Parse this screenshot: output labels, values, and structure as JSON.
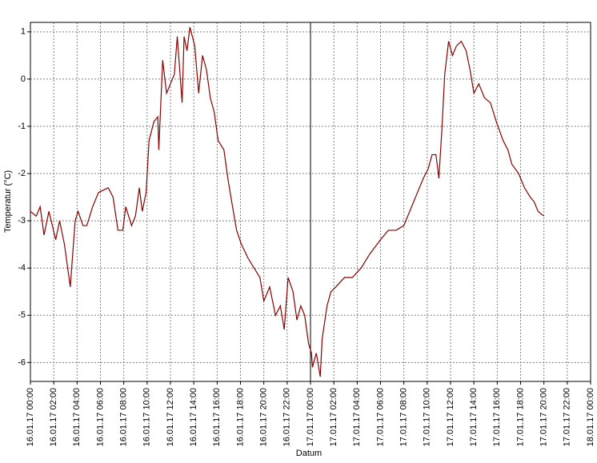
{
  "chart_data": {
    "type": "line",
    "x_label": "Datum",
    "y_label": "Temperatur (°C)",
    "xlim": [
      "16.01.17 00:00",
      "18.01.17 00:00"
    ],
    "xticks": [
      "16.01.17 00:00",
      "16.01.17 02:00",
      "16.01.17 04:00",
      "16.01.17 06:00",
      "16.01.17 08:00",
      "16.01.17 10:00",
      "16.01.17 12:00",
      "16.01.17 14:00",
      "16.01.17 16:00",
      "16.01.17 18:00",
      "16.01.17 20:00",
      "16.01.17 22:00",
      "17.01.17 00:00",
      "17.01.17 02:00",
      "17.01.17 04:00",
      "17.01.17 06:00",
      "17.01.17 08:00",
      "17.01.17 10:00",
      "17.01.17 12:00",
      "17.01.17 14:00",
      "17.01.17 16:00",
      "17.01.17 18:00",
      "17.01.17 20:00",
      "17.01.17 22:00",
      "18.01.17 00:00"
    ],
    "ylim": [
      -6.4,
      1.2
    ],
    "yticks": [
      1,
      0,
      -1,
      -2,
      -3,
      -4,
      -5,
      -6
    ],
    "grid": true,
    "marker_x": "17.01.17 00:00",
    "x": [
      "16.01.17 00:00",
      "16.01.17 00:30",
      "16.01.17 00:50",
      "16.01.17 01:10",
      "16.01.17 01:35",
      "16.01.17 02:10",
      "16.01.17 02:30",
      "16.01.17 02:55",
      "16.01.17 03:25",
      "16.01.17 03:50",
      "16.01.17 04:05",
      "16.01.17 04:30",
      "16.01.17 04:50",
      "16.01.17 05:20",
      "16.01.17 05:50",
      "16.01.17 06:40",
      "16.01.17 07:05",
      "16.01.17 07:30",
      "16.01.17 07:55",
      "16.01.17 08:10",
      "16.01.17 08:40",
      "16.01.17 09:00",
      "16.01.17 09:20",
      "16.01.17 09:35",
      "16.01.17 09:55",
      "16.01.17 10:10",
      "16.01.17 10:35",
      "16.01.17 10:55",
      "16.01.17 11:00",
      "16.01.17 11:20",
      "16.01.17 11:40",
      "16.01.17 12:00",
      "16.01.17 12:20",
      "16.01.17 12:35",
      "16.01.17 13:00",
      "16.01.17 13:10",
      "16.01.17 13:25",
      "16.01.17 13:40",
      "16.01.17 14:05",
      "16.01.17 14:25",
      "16.01.17 14:45",
      "16.01.17 15:05",
      "16.01.17 15:25",
      "16.01.17 15:45",
      "16.01.17 16:05",
      "16.01.17 16:35",
      "16.01.17 16:55",
      "16.01.17 17:15",
      "16.01.17 17:40",
      "16.01.17 18:05",
      "16.01.17 18:40",
      "16.01.17 19:10",
      "16.01.17 19:40",
      "16.01.17 20:00",
      "16.01.17 20:30",
      "16.01.17 21:00",
      "16.01.17 21:25",
      "16.01.17 21:45",
      "16.01.17 22:05",
      "16.01.17 22:30",
      "16.01.17 22:50",
      "16.01.17 23:10",
      "16.01.17 23:30",
      "16.01.17 23:50",
      "17.01.17 00:05",
      "17.01.17 00:10",
      "17.01.17 00:30",
      "17.01.17 00:50",
      "17.01.17 01:00",
      "17.01.17 01:25",
      "17.01.17 01:45",
      "17.01.17 02:10",
      "17.01.17 02:55",
      "17.01.17 03:35",
      "17.01.17 04:20",
      "17.01.17 05:05",
      "17.01.17 06:00",
      "17.01.17 06:40",
      "17.01.17 07:20",
      "17.01.17 08:00",
      "17.01.17 08:40",
      "17.01.17 09:10",
      "17.01.17 09:40",
      "17.01.17 10:05",
      "17.01.17 10:25",
      "17.01.17 10:45",
      "17.01.17 11:00",
      "17.01.17 11:15",
      "17.01.17 11:30",
      "17.01.17 11:50",
      "17.01.17 12:10",
      "17.01.17 12:30",
      "17.01.17 12:55",
      "17.01.17 13:20",
      "17.01.17 13:40",
      "17.01.17 14:00",
      "17.01.17 14:25",
      "17.01.17 14:55",
      "17.01.17 15:25",
      "17.01.17 15:55",
      "17.01.17 16:30",
      "17.01.17 16:55",
      "17.01.17 17:15",
      "17.01.17 17:50",
      "17.01.17 18:20",
      "17.01.17 18:50",
      "17.01.17 19:10",
      "17.01.17 19:30",
      "17.01.17 20:00"
    ],
    "series": [
      {
        "color": "#8b0000",
        "values": [
          -2.8,
          -2.9,
          -2.7,
          -3.3,
          -2.8,
          -3.4,
          -3.0,
          -3.5,
          -4.4,
          -3.0,
          -2.8,
          -3.1,
          -3.1,
          -2.7,
          -2.4,
          -2.3,
          -2.5,
          -3.2,
          -3.2,
          -2.7,
          -3.1,
          -2.9,
          -2.3,
          -2.8,
          -2.4,
          -1.3,
          -0.9,
          -0.8,
          -1.5,
          0.4,
          -0.3,
          -0.1,
          0.1,
          0.9,
          -0.5,
          0.9,
          0.6,
          1.1,
          0.7,
          -0.3,
          0.5,
          0.2,
          -0.4,
          -0.7,
          -1.3,
          -1.5,
          -2.1,
          -2.6,
          -3.2,
          -3.5,
          -3.8,
          -4.0,
          -4.2,
          -4.7,
          -4.4,
          -5.0,
          -4.8,
          -5.3,
          -4.2,
          -4.5,
          -5.1,
          -4.8,
          -5.0,
          -5.6,
          -5.8,
          -6.1,
          -5.8,
          -6.3,
          -5.5,
          -4.8,
          -4.5,
          -4.4,
          -4.2,
          -4.2,
          -4.0,
          -3.7,
          -3.4,
          -3.2,
          -3.2,
          -3.1,
          -2.7,
          -2.4,
          -2.1,
          -1.9,
          -1.6,
          -1.6,
          -2.1,
          -1.1,
          0.1,
          0.8,
          0.5,
          0.7,
          0.8,
          0.6,
          0.2,
          -0.3,
          -0.1,
          -0.4,
          -0.5,
          -0.9,
          -1.3,
          -1.5,
          -1.8,
          -2.0,
          -2.3,
          -2.5,
          -2.6,
          -2.8,
          -2.9
        ]
      }
    ]
  }
}
